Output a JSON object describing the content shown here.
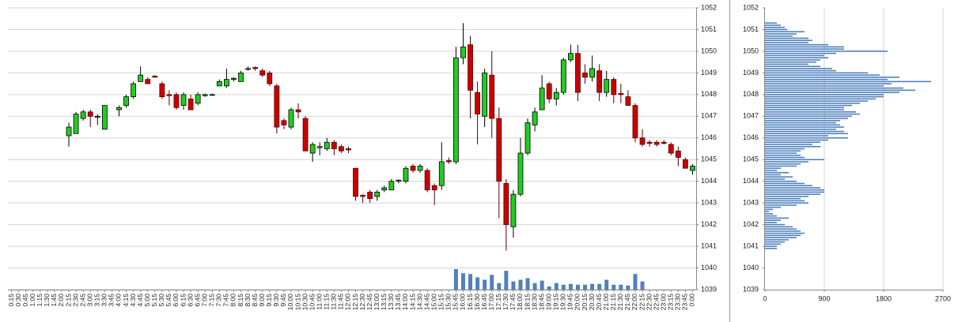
{
  "chart_data": [
    {
      "type": "candlestick",
      "categories": [
        "0:15",
        "0:30",
        "0:45",
        "1:00",
        "1:15",
        "1:30",
        "1:45",
        "2:00",
        "2:15",
        "2:30",
        "2:45",
        "3:00",
        "3:15",
        "3:30",
        "3:45",
        "4:00",
        "4:15",
        "4:30",
        "4:45",
        "5:00",
        "5:15",
        "5:30",
        "5:45",
        "6:00",
        "6:15",
        "6:30",
        "6:45",
        "7:00",
        "7:15",
        "7:30",
        "7:45",
        "8:00",
        "8:15",
        "8:30",
        "8:45",
        "9:00",
        "9:15",
        "9:30",
        "9:45",
        "10:00",
        "10:15",
        "10:30",
        "10:45",
        "11:00",
        "11:15",
        "11:30",
        "11:45",
        "12:00",
        "12:15",
        "12:30",
        "12:45",
        "13:00",
        "13:15",
        "13:30",
        "13:45",
        "14:00",
        "14:15",
        "14:30",
        "14:45",
        "15:00",
        "15:15",
        "15:30",
        "15:45",
        "16:00",
        "16:15",
        "16:30",
        "16:45",
        "17:00",
        "17:15",
        "17:30",
        "17:45",
        "18:00",
        "18:15",
        "18:30",
        "18:45",
        "19:00",
        "19:15",
        "19:30",
        "19:45",
        "20:00",
        "20:15",
        "20:30",
        "20:45",
        "21:00",
        "21:15",
        "21:30",
        "21:45",
        "22:00",
        "22:15",
        "22:30",
        "22:45",
        "23:00",
        "23:15",
        "23:30",
        "23:45",
        "0:00"
      ],
      "open": [
        null,
        null,
        null,
        null,
        null,
        null,
        null,
        null,
        1046.1,
        1046.2,
        1046.9,
        1047.2,
        1046.95,
        1046.4,
        null,
        1047.3,
        1047.5,
        1047.9,
        1048.6,
        1048.7,
        1048.85,
        1048.5,
        1048.0,
        1048.0,
        1047.5,
        1047.8,
        1047.6,
        1047.95,
        1048.0,
        1048.4,
        1048.4,
        1048.7,
        1048.6,
        1049.2,
        1049.25,
        1049.1,
        1049.0,
        1048.4,
        1046.8,
        1046.5,
        1047.3,
        1046.9,
        1045.3,
        1045.55,
        1045.5,
        1045.8,
        1045.6,
        1045.5,
        1044.6,
        1043.35,
        1043.5,
        1043.3,
        1043.6,
        1043.6,
        1044.0,
        1044.0,
        1044.7,
        1044.5,
        1044.5,
        1043.8,
        1043.8,
        1044.95,
        1044.9,
        1049.7,
        1050.3,
        1048.1,
        1047.0,
        1048.9,
        1046.9,
        1043.9,
        1041.9,
        1043.4,
        1045.3,
        1046.6,
        1047.3,
        1048.5,
        1047.8,
        1048.1,
        1049.6,
        1049.9,
        1049.0,
        1048.8,
        1049.1,
        1048.1,
        1048.7,
        1048.05,
        1047.9,
        1047.5,
        1046.0,
        1045.8,
        1045.8,
        1045.8,
        1045.7,
        1045.4,
        1045.0,
        1044.5
      ],
      "high": [
        null,
        null,
        null,
        null,
        null,
        null,
        null,
        null,
        1046.7,
        1047.2,
        1047.3,
        1047.3,
        1047.1,
        1047.5,
        null,
        1047.5,
        1048.0,
        1048.6,
        1049.3,
        1048.8,
        1048.9,
        1048.6,
        1048.2,
        1048.1,
        1048.1,
        1048.0,
        1048.1,
        1048.05,
        1048.05,
        1048.7,
        1049.2,
        1048.8,
        1049.1,
        1049.3,
        1049.3,
        1049.2,
        1049.1,
        1048.5,
        1046.9,
        1047.4,
        1047.6,
        1047.0,
        1045.8,
        1045.8,
        1046.0,
        1045.9,
        1045.7,
        1045.6,
        1044.6,
        1043.4,
        1043.6,
        1043.6,
        1043.8,
        1044.1,
        1044.1,
        1044.7,
        1044.8,
        1044.8,
        1044.6,
        1043.9,
        1045.8,
        1045.1,
        1050.2,
        1051.3,
        1050.7,
        1048.6,
        1049.2,
        1050.0,
        1047.4,
        1044.1,
        1043.6,
        1046.0,
        1046.9,
        1047.4,
        1048.9,
        1048.6,
        1048.3,
        1049.7,
        1050.3,
        1050.3,
        1049.4,
        1049.8,
        1049.4,
        1049.1,
        1048.8,
        1048.5,
        1048.2,
        1047.6,
        1046.4,
        1045.9,
        1045.9,
        1045.9,
        1045.8,
        1045.6,
        1045.1,
        1044.8
      ],
      "low": [
        null,
        null,
        null,
        null,
        null,
        null,
        null,
        null,
        1045.6,
        1046.2,
        1046.8,
        1046.5,
        1046.6,
        1046.4,
        null,
        1047.0,
        1047.4,
        1047.8,
        1048.6,
        1048.5,
        1048.8,
        1047.8,
        1047.5,
        1047.3,
        1047.3,
        1047.3,
        1047.5,
        1047.9,
        1047.95,
        1048.4,
        1048.3,
        1048.6,
        1048.6,
        1049.1,
        1049.1,
        1048.8,
        1048.4,
        1046.2,
        1046.4,
        1046.4,
        1046.9,
        1045.4,
        1044.9,
        1045.2,
        1045.4,
        1045.2,
        1045.3,
        1045.3,
        1043.1,
        1043.0,
        1043.0,
        1043.1,
        1043.5,
        1043.6,
        1043.9,
        1043.9,
        1044.4,
        1044.4,
        1043.5,
        1042.9,
        1043.6,
        1044.8,
        1044.8,
        1049.4,
        1046.9,
        1045.7,
        1046.5,
        1046.0,
        1042.3,
        1040.8,
        1041.4,
        1043.3,
        1045.2,
        1046.3,
        1047.3,
        1047.6,
        1047.5,
        1048.0,
        1049.5,
        1047.7,
        1048.5,
        1048.6,
        1047.7,
        1047.9,
        1047.6,
        1047.6,
        1047.5,
        1045.8,
        1045.6,
        1045.6,
        1045.6,
        1045.7,
        1045.2,
        1044.7,
        1044.6,
        1044.3
      ],
      "close": [
        null,
        null,
        null,
        null,
        null,
        null,
        null,
        null,
        1046.5,
        1047.1,
        1047.2,
        1047.0,
        1047.0,
        1047.5,
        null,
        1047.4,
        1047.9,
        1048.5,
        1048.9,
        1048.5,
        1048.8,
        1047.9,
        1047.95,
        1047.4,
        1048.0,
        1047.3,
        1048.0,
        1048.0,
        1048.0,
        1048.6,
        1048.7,
        1048.75,
        1049.0,
        1049.2,
        1049.2,
        1048.9,
        1048.5,
        1046.5,
        1046.6,
        1047.3,
        1047.2,
        1045.4,
        1045.7,
        1045.6,
        1045.8,
        1045.5,
        1045.4,
        1045.45,
        1043.3,
        1043.3,
        1043.2,
        1043.5,
        1043.7,
        1044.0,
        1044.05,
        1044.6,
        1044.5,
        1044.7,
        1043.6,
        1043.6,
        1044.9,
        1044.9,
        1049.7,
        1050.2,
        1048.2,
        1047.1,
        1049.0,
        1046.9,
        1044.0,
        1042.0,
        1043.4,
        1045.3,
        1046.7,
        1047.2,
        1048.3,
        1047.8,
        1048.1,
        1049.6,
        1049.9,
        1048.1,
        1048.8,
        1049.2,
        1048.1,
        1048.7,
        1048.0,
        1048.0,
        1047.5,
        1046.0,
        1045.7,
        1045.75,
        1045.7,
        1045.75,
        1045.3,
        1045.1,
        1044.6,
        1044.7
      ],
      "volume": [
        null,
        null,
        null,
        null,
        null,
        null,
        null,
        null,
        null,
        null,
        null,
        null,
        null,
        null,
        null,
        null,
        null,
        null,
        null,
        null,
        null,
        null,
        null,
        null,
        null,
        null,
        null,
        null,
        null,
        null,
        null,
        null,
        null,
        null,
        null,
        null,
        null,
        null,
        null,
        null,
        null,
        null,
        null,
        null,
        null,
        null,
        null,
        null,
        null,
        null,
        null,
        null,
        null,
        null,
        null,
        null,
        null,
        null,
        null,
        null,
        null,
        null,
        2500,
        2000,
        1900,
        1500,
        1200,
        1800,
        800,
        2300,
        1000,
        1200,
        1400,
        800,
        1100,
        400,
        800,
        600,
        700,
        600,
        600,
        700,
        700,
        1200,
        600,
        600,
        500,
        1900,
        1000,
        null,
        null,
        null,
        null,
        null,
        null,
        null
      ],
      "ylim": [
        1039,
        1052
      ],
      "yticks": [
        1039,
        1040,
        1041,
        1042,
        1043,
        1044,
        1045,
        1046,
        1047,
        1048,
        1049,
        1050,
        1051,
        1052
      ],
      "grid": true,
      "up_color": "#22cc22",
      "down_color": "#cc0000",
      "volume_color": "#4f81bd"
    },
    {
      "type": "volume_profile",
      "levels": [
        1051.3,
        1051.2,
        1051.1,
        1051.0,
        1050.9,
        1050.8,
        1050.7,
        1050.6,
        1050.5,
        1050.4,
        1050.3,
        1050.2,
        1050.1,
        1050.0,
        1049.9,
        1049.8,
        1049.7,
        1049.6,
        1049.5,
        1049.4,
        1049.3,
        1049.2,
        1049.1,
        1049.0,
        1048.9,
        1048.8,
        1048.7,
        1048.6,
        1048.5,
        1048.4,
        1048.3,
        1048.2,
        1048.1,
        1048.0,
        1047.9,
        1047.8,
        1047.7,
        1047.6,
        1047.5,
        1047.4,
        1047.3,
        1047.2,
        1047.1,
        1047.0,
        1046.9,
        1046.8,
        1046.7,
        1046.6,
        1046.5,
        1046.4,
        1046.3,
        1046.2,
        1046.1,
        1046.0,
        1045.9,
        1045.8,
        1045.7,
        1045.6,
        1045.5,
        1045.4,
        1045.3,
        1045.2,
        1045.1,
        1045.0,
        1044.9,
        1044.8,
        1044.7,
        1044.6,
        1044.5,
        1044.4,
        1044.3,
        1044.2,
        1044.1,
        1044.0,
        1043.9,
        1043.8,
        1043.7,
        1043.6,
        1043.5,
        1043.4,
        1043.3,
        1043.2,
        1043.1,
        1043.0,
        1042.9,
        1042.8,
        1042.7,
        1042.6,
        1042.5,
        1042.4,
        1042.3,
        1042.2,
        1042.1,
        1042.0,
        1041.9,
        1041.8,
        1041.7,
        1041.6,
        1041.5,
        1041.4,
        1041.3,
        1041.2,
        1041.1,
        1041.0,
        1040.9
      ],
      "values": [
        180,
        240,
        300,
        340,
        600,
        480,
        420,
        660,
        720,
        660,
        960,
        1200,
        1200,
        1860,
        1080,
        900,
        960,
        840,
        780,
        660,
        840,
        1020,
        1080,
        1560,
        1740,
        2040,
        1860,
        2520,
        1920,
        1800,
        2100,
        2280,
        2040,
        1800,
        1800,
        1680,
        1560,
        1440,
        1320,
        1200,
        1200,
        1380,
        1440,
        1320,
        1260,
        1140,
        1080,
        1140,
        1200,
        1080,
        1200,
        1260,
        960,
        1260,
        960,
        840,
        720,
        840,
        600,
        540,
        480,
        540,
        600,
        900,
        660,
        540,
        480,
        240,
        180,
        360,
        240,
        420,
        300,
        480,
        600,
        720,
        840,
        900,
        900,
        840,
        660,
        540,
        600,
        660,
        480,
        240,
        120,
        60,
        120,
        180,
        360,
        240,
        180,
        300,
        420,
        480,
        540,
        600,
        540,
        480,
        360,
        300,
        240,
        180,
        180
      ],
      "xlim": [
        0,
        2700
      ],
      "xticks": [
        0,
        900,
        1800,
        2700
      ],
      "ylim": [
        1039,
        1052
      ],
      "yticks": [
        1039,
        1040,
        1041,
        1042,
        1043,
        1044,
        1045,
        1046,
        1047,
        1048,
        1049,
        1050,
        1051,
        1052
      ],
      "grid": true,
      "color": "#4f81bd"
    }
  ]
}
